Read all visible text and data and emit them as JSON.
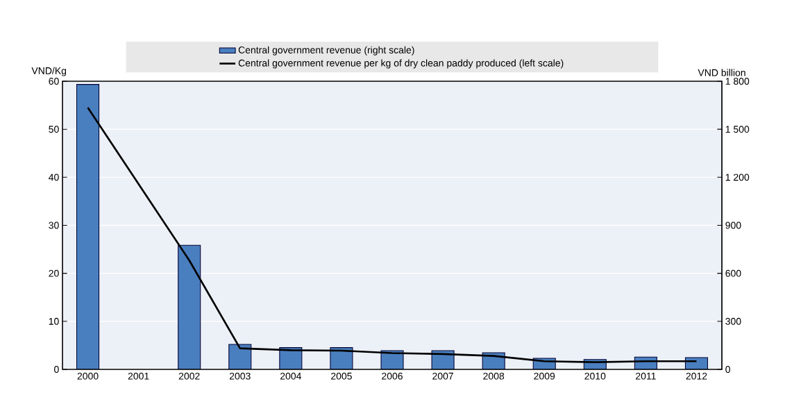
{
  "chart_data": {
    "type": "bar",
    "categories": [
      "2000",
      "2001",
      "2002",
      "2003",
      "2004",
      "2005",
      "2006",
      "2007",
      "2008",
      "2009",
      "2010",
      "2011",
      "2012"
    ],
    "series": [
      {
        "name": "Central government revenue (right scale)",
        "axis": "y2",
        "color": "#4a7fbf",
        "values": [
          1780,
          null,
          775,
          156,
          136,
          136,
          117,
          117,
          104,
          69,
          62,
          77,
          74
        ]
      },
      {
        "name": "Central government revenue per kg of dry clean paddy produced (left scale)",
        "type": "line",
        "axis": "y",
        "color": "#000000",
        "values": [
          54.5,
          null,
          22.7,
          4.4,
          4.0,
          3.9,
          3.4,
          3.2,
          2.8,
          1.7,
          1.5,
          1.7,
          1.7
        ]
      }
    ],
    "ylabel": "VND/Kg",
    "y2label": "VND billion",
    "ylim": [
      0,
      60
    ],
    "yticks": [
      0,
      10,
      20,
      30,
      40,
      50,
      60
    ],
    "y2lim": [
      0,
      1800
    ],
    "y2ticks": [
      0,
      300,
      600,
      {
        "value": 900,
        "label": "900"
      },
      {
        "value": 1200,
        "label": "1 200"
      },
      {
        "value": 1500,
        "label": "1 500"
      },
      {
        "value": 1800,
        "label": "1 800"
      }
    ],
    "grid": true,
    "legend": "top"
  }
}
